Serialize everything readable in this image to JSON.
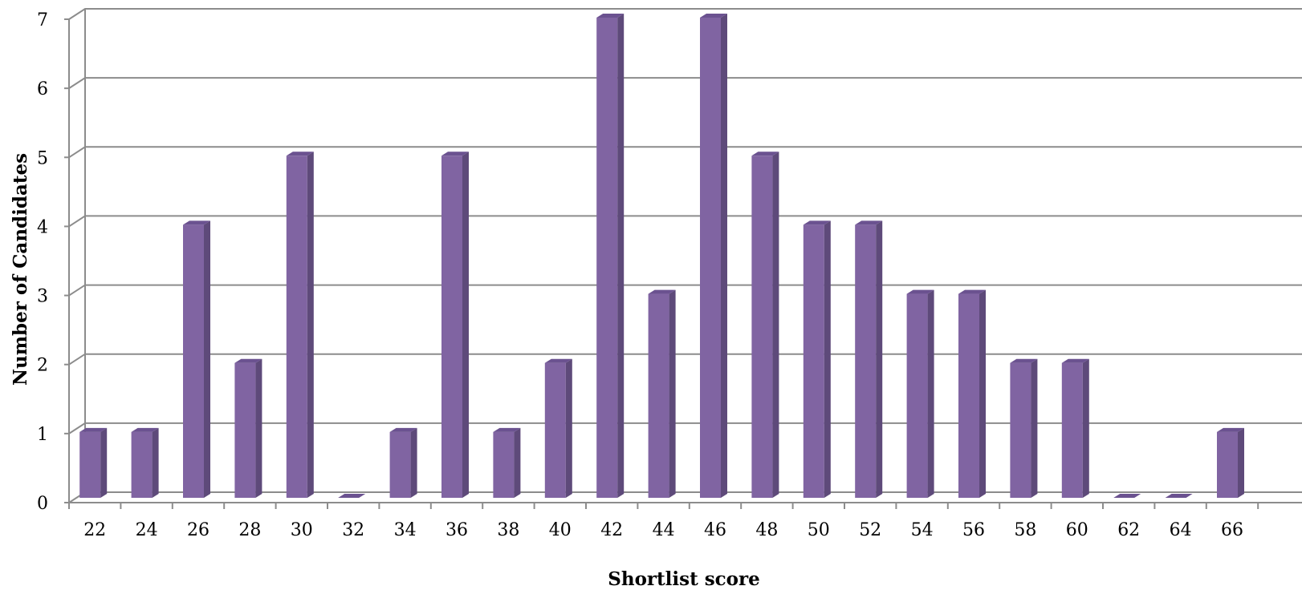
{
  "chart_data": {
    "type": "bar",
    "style": "3d-column",
    "title": "",
    "xlabel": "Shortlist score",
    "ylabel": "Number of Candidates",
    "categories": [
      "22",
      "24",
      "26",
      "28",
      "30",
      "32",
      "34",
      "36",
      "38",
      "40",
      "42",
      "44",
      "46",
      "48",
      "50",
      "52",
      "54",
      "56",
      "58",
      "60",
      "62",
      "64",
      "66"
    ],
    "values": [
      1,
      1,
      4,
      2,
      5,
      0,
      1,
      5,
      1,
      2,
      7,
      3,
      7,
      5,
      4,
      4,
      3,
      3,
      2,
      2,
      0,
      0,
      1
    ],
    "ylim": [
      0,
      7
    ],
    "yticks": [
      "0",
      "1",
      "2",
      "3",
      "4",
      "5",
      "6",
      "7"
    ],
    "grid": true,
    "legend": "none",
    "colors": {
      "bar_front": "#8064A2",
      "bar_side": "#5E4A7A",
      "bar_top": "#6B5290",
      "grid": "#8C8C8C"
    }
  }
}
